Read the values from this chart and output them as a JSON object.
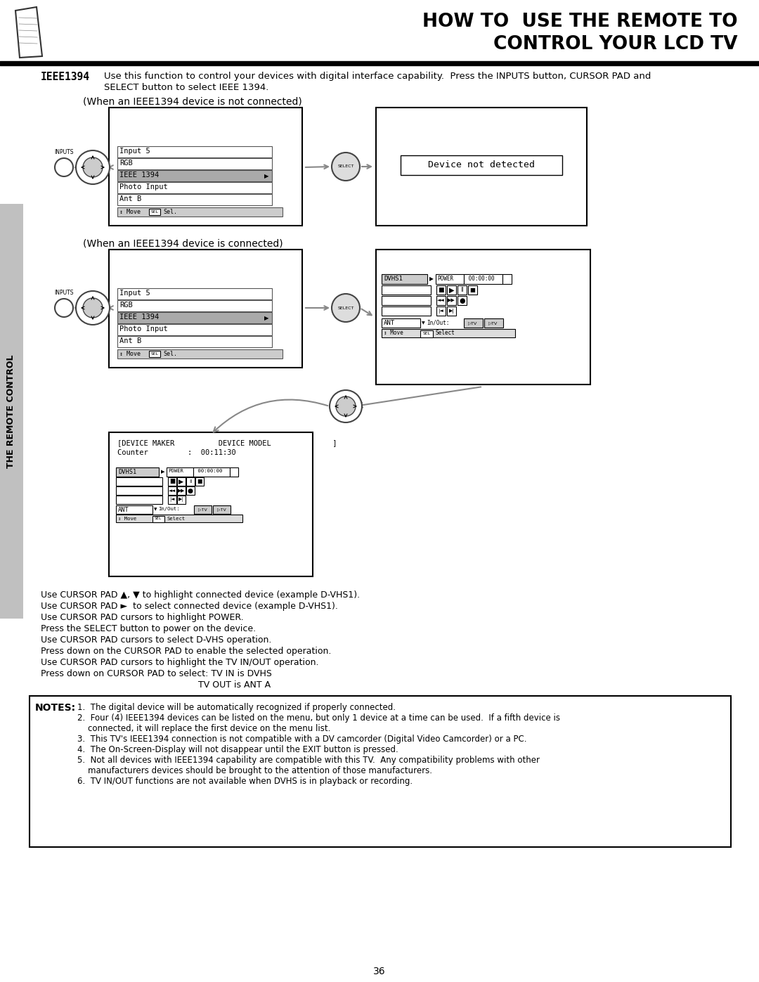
{
  "title_line1": "HOW TO  USE THE REMOTE TO",
  "title_line2": "CONTROL YOUR LCD TV",
  "bg_color": "#ffffff",
  "text_color": "#000000",
  "page_number": "36",
  "sidebar_text": "THE REMOTE CONTROL",
  "ieee_label": "IEEE1394",
  "header_desc1": "Use this function to control your devices with digital interface capability.  Press the INPUTS button, CURSOR PAD and",
  "header_desc2": "SELECT button to select IEEE 1394.",
  "not_connected_label": "(When an IEEE1394 device is not connected)",
  "connected_label": "(When an IEEE1394 device is connected)",
  "menu_items": [
    "Input 5",
    "RGB",
    "IEEE 1394",
    "Photo Input",
    "Ant B"
  ],
  "device_not_detected": "Device not detected",
  "notes_title": "NOTES:",
  "notes": [
    "1.  The digital device will be automatically recognized if properly connected.",
    "2.  Four (4) IEEE1394 devices can be listed on the menu, but only 1 device at a time can be used.  If a fifth device is",
    "    connected, it will replace the first device on the menu list.",
    "3.  This TV's IEEE1394 connection is not compatible with a DV camcorder (Digital Video Camcorder) or a PC.",
    "4.  The On-Screen-Display will not disappear until the EXIT button is pressed.",
    "5.  Not all devices with IEEE1394 capability are compatible with this TV.  Any compatibility problems with other",
    "    manufacturers devices should be brought to the attention of those manufacturers.",
    "6.  TV IN/OUT functions are not available when DVHS is in playback or recording."
  ],
  "instructions": [
    "Use CURSOR PAD ▲, ▼ to highlight connected device (example D-VHS1).",
    "Use CURSOR PAD ►  to select connected device (example D-VHS1).",
    "Use CURSOR PAD cursors to highlight POWER.",
    "Press the SELECT button to power on the device.",
    "Use CURSOR PAD cursors to select D-VHS operation.",
    "Press down on the CURSOR PAD to enable the selected operation.",
    "Use CURSOR PAD cursors to highlight the TV IN/OUT operation.",
    "Press down on CURSOR PAD to select: TV IN is DVHS",
    "                                                        TV OUT is ANT A"
  ],
  "device_maker_line": "[DEVICE MAKER          DEVICE MODEL              ]",
  "counter_line": "Counter         :  00:11:30"
}
